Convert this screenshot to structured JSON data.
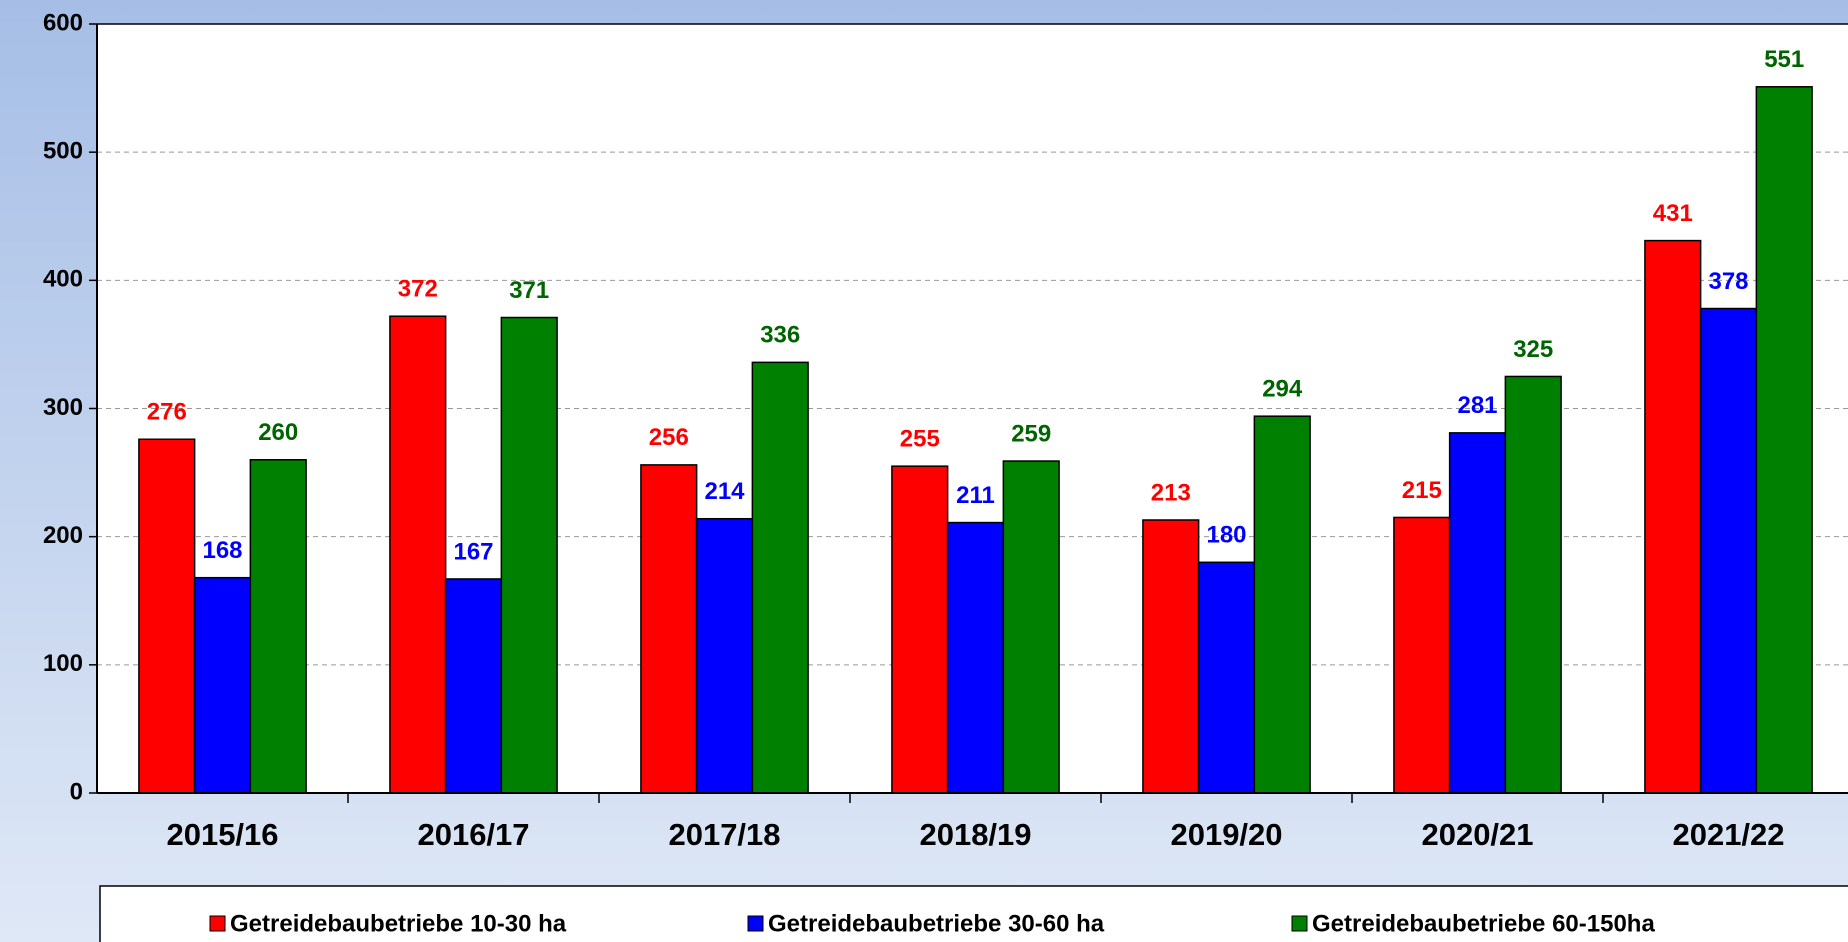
{
  "chart_data": {
    "type": "bar",
    "categories": [
      "2015/16",
      "2016/17",
      "2017/18",
      "2018/19",
      "2019/20",
      "2020/21",
      "2021/22"
    ],
    "series": [
      {
        "name": "Getreidebaubetriebe 10-30 ha",
        "color": "#ff0000",
        "label_color": "#ff0000",
        "values": [
          276,
          372,
          256,
          255,
          213,
          215,
          431
        ]
      },
      {
        "name": "Getreidebaubetriebe 30-60 ha",
        "color": "#0000ff",
        "label_color": "#0000ff",
        "values": [
          168,
          167,
          214,
          211,
          180,
          281,
          378
        ]
      },
      {
        "name": "Getreidebaubetriebe 60-150ha",
        "color": "#008000",
        "label_color": "#006400",
        "values": [
          260,
          371,
          336,
          259,
          294,
          325,
          551
        ]
      }
    ],
    "ylim": [
      0,
      600
    ],
    "yticks": [
      0,
      100,
      200,
      300,
      400,
      500,
      600
    ],
    "grid": true,
    "legend": "bottom"
  }
}
